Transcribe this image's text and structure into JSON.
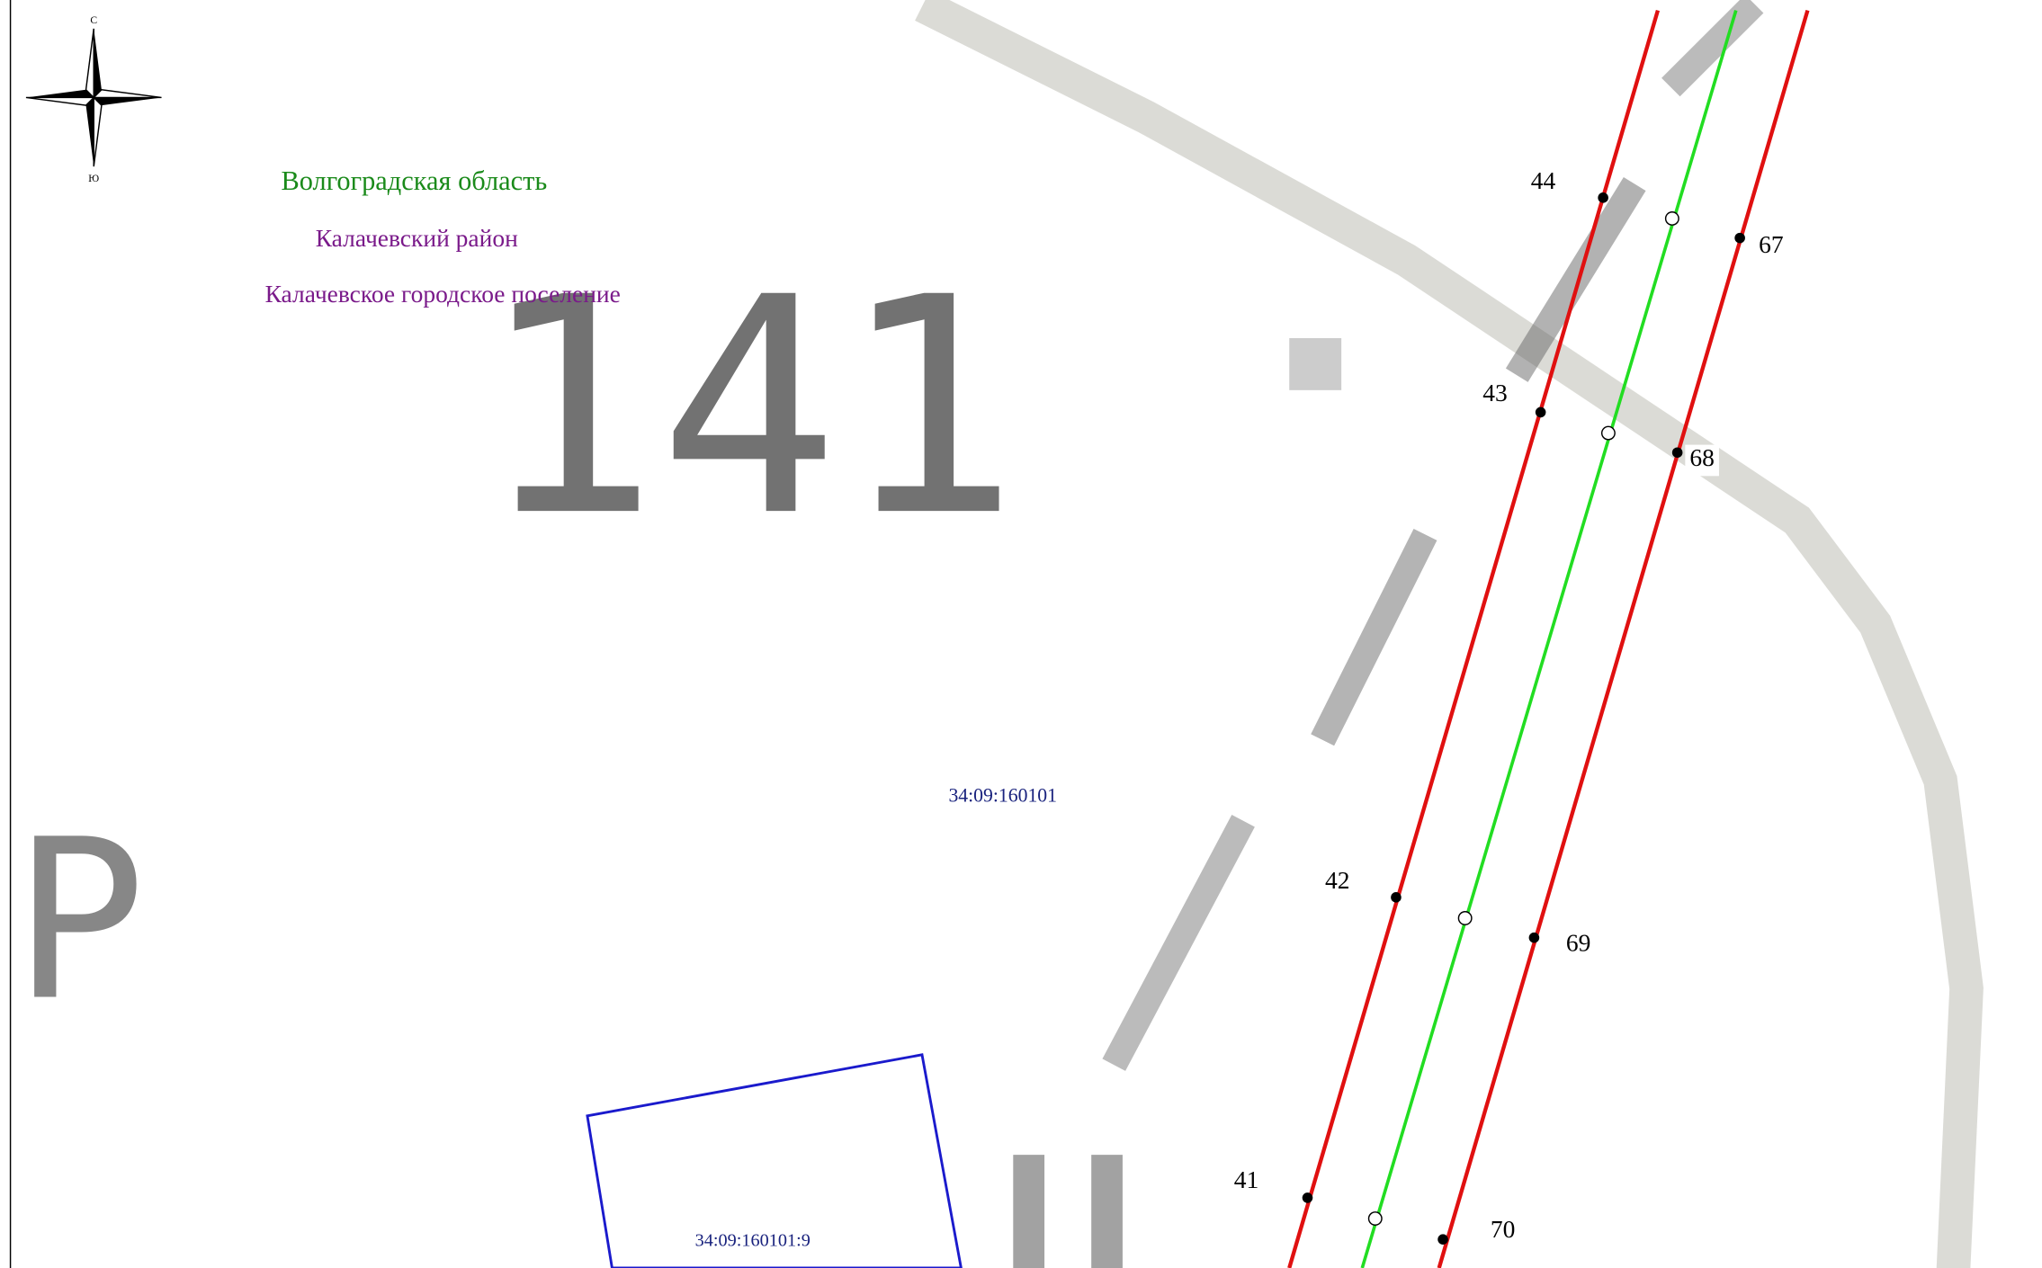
{
  "compass": {
    "north": "С",
    "south": "Ю"
  },
  "region_labels": [
    "Волгоградская область",
    "Калачевский район",
    "Калачевское городское поселение"
  ],
  "background_labels": [
    "141",
    "Р"
  ],
  "cadastral_quarter": "34:09:160101",
  "parcel": "34:09:160101:9",
  "points": [
    "44",
    "43",
    "42",
    "41",
    "67",
    "68",
    "69",
    "70"
  ]
}
